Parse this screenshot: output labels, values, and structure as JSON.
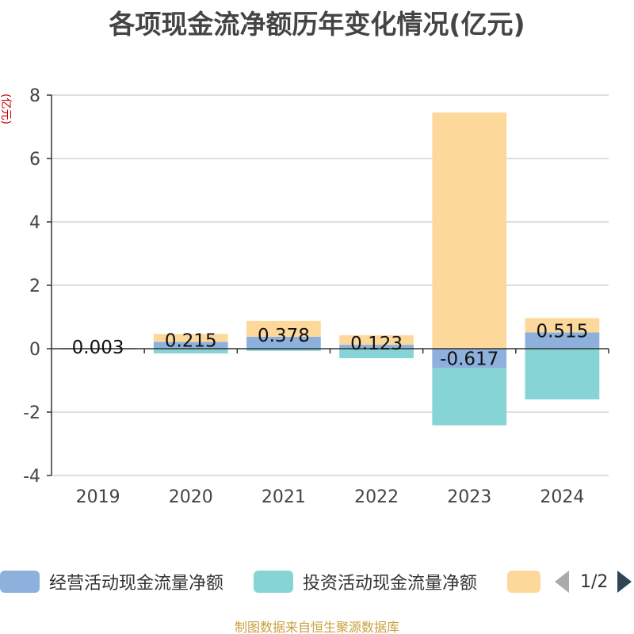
{
  "title": "各项现金流净额历年变化情况(亿元)",
  "source": "制图数据来自恒生聚源数据库",
  "colors": {
    "operating": "#8eb0dc",
    "investing": "#86d4d6",
    "financing": "#fdd89b",
    "axis": "#333333",
    "grid": "#cccccc",
    "ylabel": "#cc0000"
  },
  "legend": {
    "items": [
      "经营活动现金流量净额",
      "投资活动现金流量净额",
      ""
    ],
    "page_text": "1/2",
    "prev_icon": "triangle-left-icon",
    "next_icon": "triangle-right-icon"
  },
  "chart_data": {
    "type": "bar",
    "stacked": true,
    "categories": [
      "2019",
      "2020",
      "2021",
      "2022",
      "2023",
      "2024"
    ],
    "ylabel": "(亿元)",
    "ylim": [
      -4,
      8
    ],
    "yticks": [
      -4,
      -2,
      0,
      2,
      4,
      6,
      8
    ],
    "grid": true,
    "legend_position": "bottom",
    "series": [
      {
        "name": "经营活动现金流量净额",
        "key": "operating",
        "values": [
          0.003,
          0.215,
          0.378,
          0.123,
          -0.617,
          0.515
        ],
        "labels": [
          "0.003",
          "0.215",
          "0.378",
          "0.123",
          "-0.617",
          "0.515"
        ]
      },
      {
        "name": "投资活动现金流量净额",
        "key": "investing",
        "values": [
          -0.02,
          -0.15,
          -0.07,
          -0.3,
          -1.8,
          -1.6
        ]
      },
      {
        "name": "",
        "key": "financing",
        "values": [
          0.02,
          0.25,
          0.5,
          0.3,
          7.45,
          0.45
        ]
      }
    ]
  }
}
